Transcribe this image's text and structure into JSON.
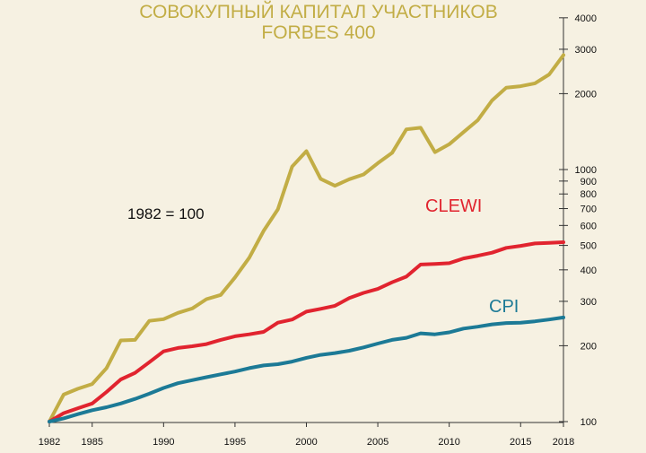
{
  "chart_data": {
    "type": "line",
    "title": [
      "СОВОКУПНЫЙ КАПИТАЛ УЧАСТНИКОВ",
      "FORBES 400"
    ],
    "note": "1982 = 100",
    "y_scale": "log",
    "ylim": [
      100,
      4000
    ],
    "xlim": [
      1982,
      2018
    ],
    "x_ticks": [
      1982,
      1985,
      1990,
      1995,
      2000,
      2005,
      2010,
      2015,
      2018
    ],
    "y_ticks": [
      100,
      200,
      300,
      400,
      500,
      600,
      700,
      800,
      900,
      1000,
      2000,
      3000,
      4000
    ],
    "grid": false,
    "x": [
      1982,
      1983,
      1984,
      1985,
      1986,
      1987,
      1988,
      1989,
      1990,
      1991,
      1992,
      1993,
      1994,
      1995,
      1996,
      1997,
      1998,
      1999,
      2000,
      2001,
      2002,
      2003,
      2004,
      2005,
      2006,
      2007,
      2008,
      2009,
      2010,
      2011,
      2012,
      2013,
      2014,
      2015,
      2016,
      2017,
      2018
    ],
    "series": [
      {
        "name": "",
        "color": "#c2ad45",
        "values": [
          100,
          128,
          135,
          141,
          163,
          210,
          211,
          251,
          255,
          270,
          281,
          306,
          318,
          373,
          447,
          571,
          695,
          1027,
          1183,
          918,
          862,
          915,
          956,
          1060,
          1165,
          1444,
          1465,
          1172,
          1260,
          1407,
          1570,
          1879,
          2113,
          2141,
          2197,
          2383,
          2845
        ]
      },
      {
        "name": "CLEWI",
        "color": "#e1242f",
        "values": [
          100,
          108,
          113,
          118,
          131,
          147,
          156,
          172,
          190,
          196,
          199,
          203,
          211,
          218,
          222,
          227,
          247,
          254,
          273,
          280,
          288,
          309,
          324,
          336,
          357,
          376,
          420,
          422,
          425,
          444,
          455,
          468,
          489,
          498,
          509,
          512,
          515
        ]
      },
      {
        "name": "CPI",
        "color": "#1c7a96",
        "values": [
          100,
          103,
          107,
          111,
          114,
          118,
          123,
          129,
          136,
          142,
          146,
          150,
          154,
          158,
          163,
          167,
          169,
          173,
          179,
          184,
          187,
          191,
          197,
          204,
          211,
          215,
          224,
          222,
          226,
          234,
          238,
          243,
          246,
          247,
          250,
          254,
          259
        ]
      }
    ]
  }
}
